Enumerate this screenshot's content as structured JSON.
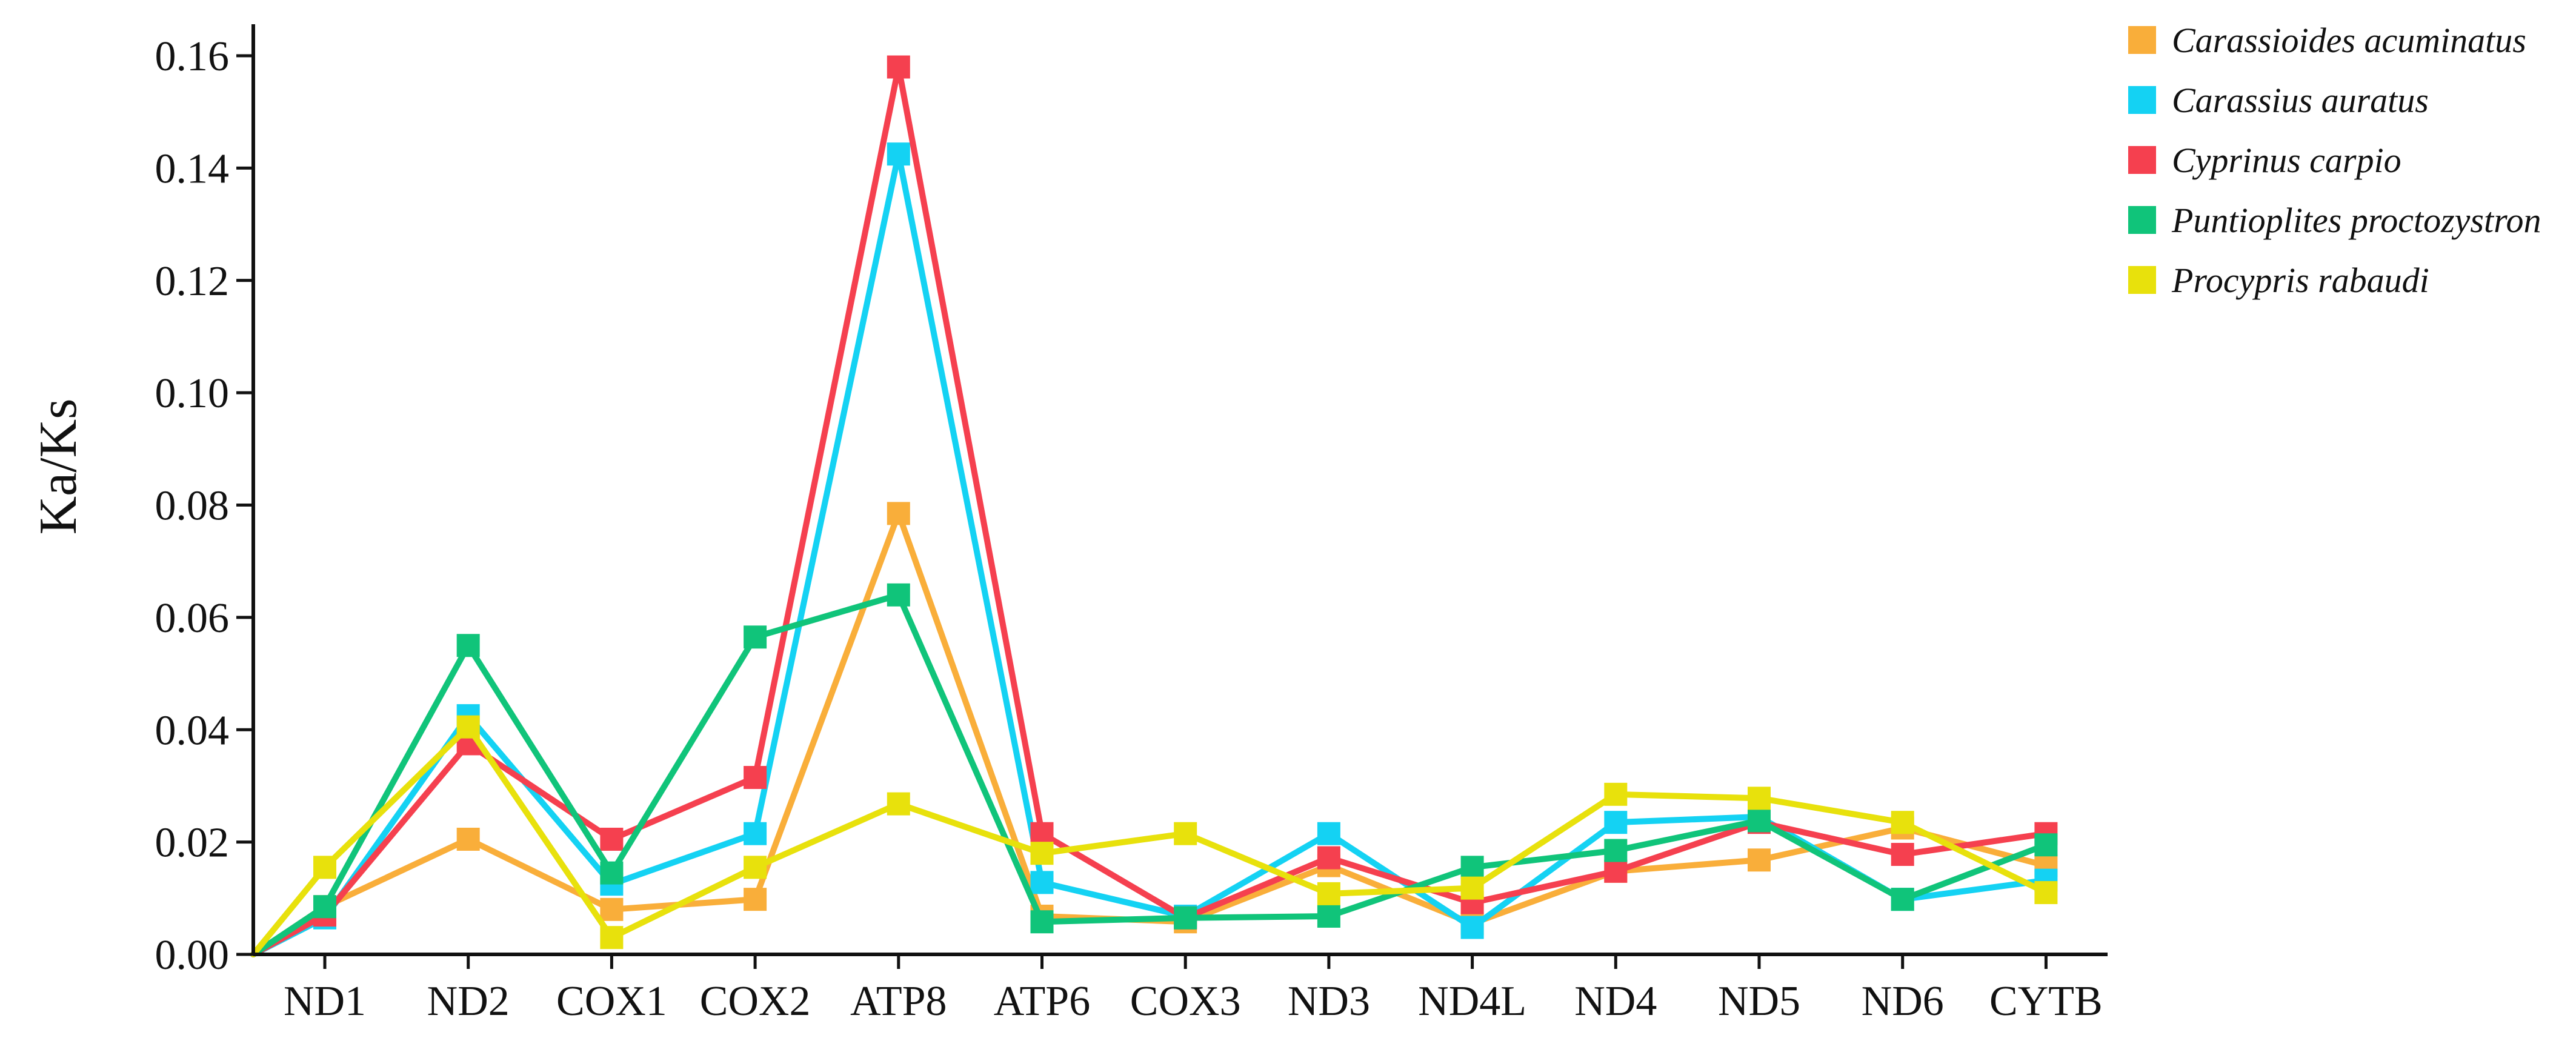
{
  "chart_data": {
    "type": "line",
    "title": "",
    "xlabel": "",
    "ylabel": "Ka/Ks",
    "categories": [
      "ND1",
      "ND2",
      "COX1",
      "COX2",
      "ATP8",
      "ATP6",
      "COX3",
      "ND3",
      "ND4L",
      "ND4",
      "ND5",
      "ND6",
      "CYTB"
    ],
    "ylim": [
      0,
      0.165
    ],
    "yticks": [
      "0.00",
      "0.02",
      "0.04",
      "0.06",
      "0.08",
      "0.10",
      "0.12",
      "0.14",
      "0.16"
    ],
    "grid": false,
    "legend_position": "top-right",
    "line_origin": 0,
    "series": [
      {
        "name": "Carassioides acuminatus",
        "color": "#F9AE3A",
        "values": [
          0.0085,
          0.0205,
          0.008,
          0.0098,
          0.0785,
          0.0068,
          0.0058,
          0.0158,
          0.0055,
          0.0148,
          0.0168,
          0.0225,
          0.0158
        ]
      },
      {
        "name": "Carassius auratus",
        "color": "#14D2F3",
        "values": [
          0.0065,
          0.0425,
          0.0125,
          0.0215,
          0.1425,
          0.0128,
          0.0068,
          0.0215,
          0.0048,
          0.0235,
          0.0245,
          0.0098,
          0.0132
        ]
      },
      {
        "name": "Cyprinus carpio",
        "color": "#F5404F",
        "values": [
          0.007,
          0.0375,
          0.0205,
          0.0315,
          0.158,
          0.0215,
          0.0065,
          0.0172,
          0.0092,
          0.0148,
          0.0235,
          0.0178,
          0.0215
        ]
      },
      {
        "name": "Puntioplites proctozystron",
        "color": "#10C47A",
        "values": [
          0.0085,
          0.055,
          0.0145,
          0.0565,
          0.064,
          0.0058,
          0.0065,
          0.0068,
          0.0155,
          0.0185,
          0.0238,
          0.0098,
          0.0195
        ]
      },
      {
        "name": "Procypris rabaudi",
        "color": "#E8E10C",
        "values": [
          0.0155,
          0.0405,
          0.003,
          0.0155,
          0.0268,
          0.018,
          0.0215,
          0.0108,
          0.0118,
          0.0285,
          0.0278,
          0.0235,
          0.011
        ]
      }
    ]
  }
}
